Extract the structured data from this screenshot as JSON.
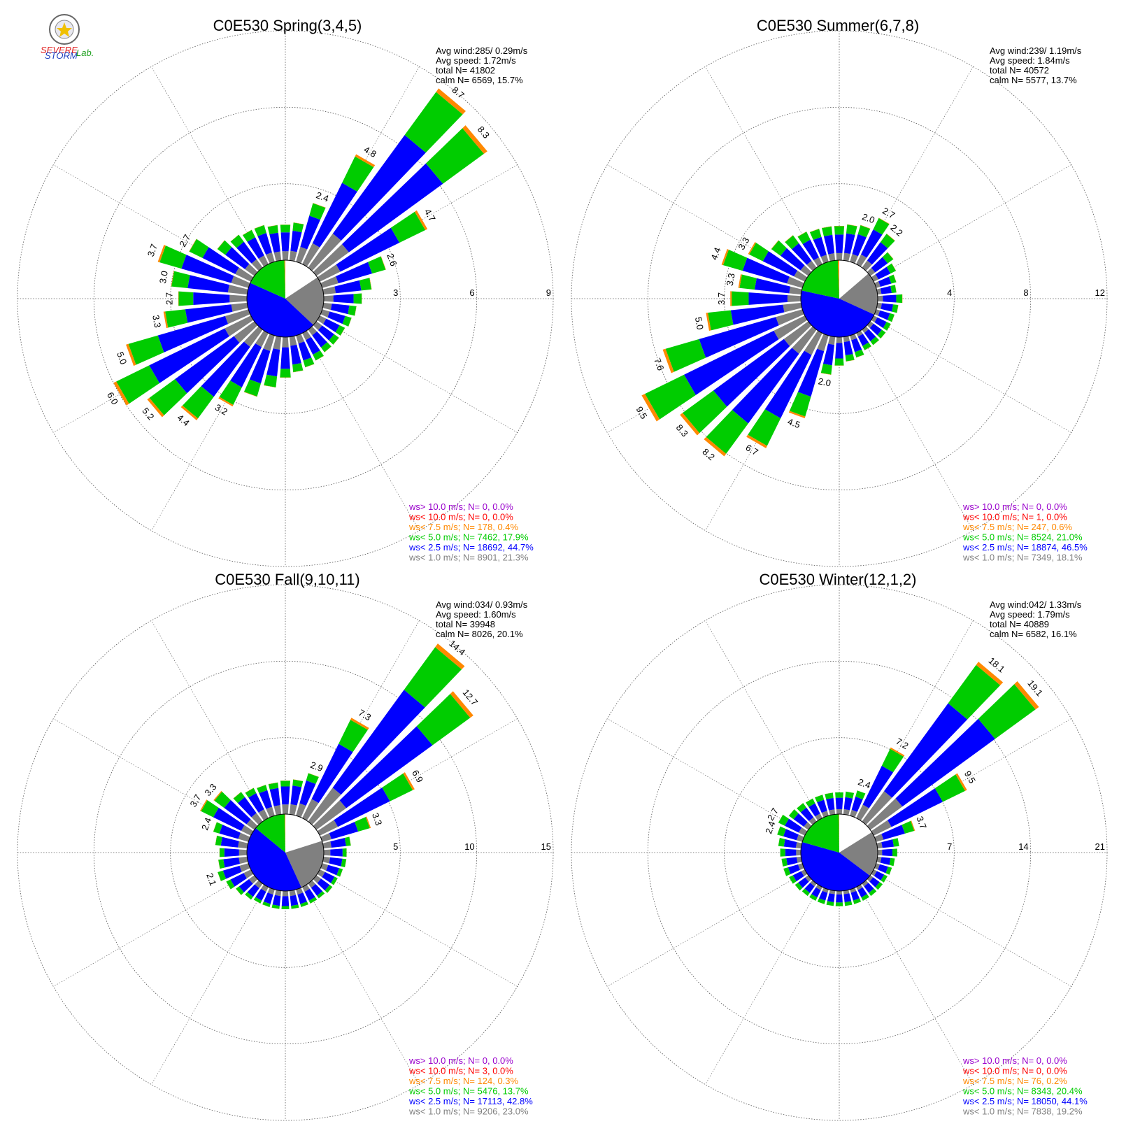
{
  "colors": {
    "calm": "#ffffff",
    "lt1": "#808080",
    "lt2_5": "#0000ff",
    "lt5": "#00cc00",
    "lt7_5": "#ff8800",
    "lt10": "#ff0000",
    "gt10": "#9900cc",
    "grid": "#555555"
  },
  "logo": {
    "text_top": "SEVERE",
    "text_bottom": "STORM",
    "text_lab": "Lab."
  },
  "chart_data": [
    {
      "type": "windrose",
      "title": "C0E530 Spring(3,4,5)",
      "ring_max": 9,
      "rings": [
        "3",
        "6",
        "9"
      ],
      "stats": [
        "Avg wind:285/ 0.29m/s",
        "Avg speed: 1.72m/s",
        "total N=       41802",
        "calm N=   6569,  15.7%"
      ],
      "legend": [
        {
          "text": "ws> 10.0 m/s; N=     0,  0.0%",
          "color": "gt10"
        },
        {
          "text": "ws< 10.0 m/s; N=     0,  0.0%",
          "color": "lt10"
        },
        {
          "text": "ws<  7.5 m/s; N=   178,  0.4%",
          "color": "lt7_5"
        },
        {
          "text": "ws<  5.0 m/s; N=  7462, 17.9%",
          "color": "lt5"
        },
        {
          "text": "ws<  2.5 m/s; N= 18692, 44.7%",
          "color": "lt2_5"
        },
        {
          "text": "ws<  1.0 m/s; N=  8901, 21.3%",
          "color": "lt1"
        }
      ],
      "pie": [
        15.7,
        21.3,
        44.7,
        17.9,
        0.4,
        0.0,
        0.0
      ],
      "bars": [
        {
          "dir": 0,
          "total": 1.4
        },
        {
          "dir": 10,
          "total": 1.5
        },
        {
          "dir": 20,
          "total": 2.4,
          "label": "2.4"
        },
        {
          "dir": 30,
          "total": 4.8,
          "label": "4.8"
        },
        {
          "dir": 40,
          "total": 8.7,
          "label": "8.7"
        },
        {
          "dir": 50,
          "total": 8.3,
          "label": "8.3"
        },
        {
          "dir": 60,
          "total": 4.7,
          "label": "4.7"
        },
        {
          "dir": 70,
          "total": 2.6,
          "label": "2.6"
        },
        {
          "dir": 80,
          "total": 1.9
        },
        {
          "dir": 90,
          "total": 1.5
        },
        {
          "dir": 100,
          "total": 1.3
        },
        {
          "dir": 110,
          "total": 1.2
        },
        {
          "dir": 120,
          "total": 1.1
        },
        {
          "dir": 130,
          "total": 1.1
        },
        {
          "dir": 140,
          "total": 1.1
        },
        {
          "dir": 150,
          "total": 1.2
        },
        {
          "dir": 160,
          "total": 1.3
        },
        {
          "dir": 170,
          "total": 1.4
        },
        {
          "dir": 180,
          "total": 1.6
        },
        {
          "dir": 190,
          "total": 2.0
        },
        {
          "dir": 200,
          "total": 2.5
        },
        {
          "dir": 210,
          "total": 3.2,
          "label": "3.2"
        },
        {
          "dir": 220,
          "total": 4.4,
          "label": "4.4"
        },
        {
          "dir": 230,
          "total": 5.2,
          "label": "5.2"
        },
        {
          "dir": 240,
          "total": 6.0,
          "label": "6.0"
        },
        {
          "dir": 250,
          "total": 5.0,
          "label": "5.0"
        },
        {
          "dir": 260,
          "total": 3.3,
          "label": "3.3"
        },
        {
          "dir": 270,
          "total": 2.7,
          "label": "2.7"
        },
        {
          "dir": 280,
          "total": 3.0,
          "label": "3.0"
        },
        {
          "dir": 290,
          "total": 3.7,
          "label": "3.7"
        },
        {
          "dir": 300,
          "total": 2.7,
          "label": "2.7"
        },
        {
          "dir": 310,
          "total": 1.8
        },
        {
          "dir": 320,
          "total": 1.6
        },
        {
          "dir": 330,
          "total": 1.5
        },
        {
          "dir": 340,
          "total": 1.5
        },
        {
          "dir": 350,
          "total": 1.4
        }
      ]
    },
    {
      "type": "windrose",
      "title": "C0E530 Summer(6,7,8)",
      "ring_max": 12,
      "rings": [
        "4",
        "8",
        "12"
      ],
      "stats": [
        "Avg wind:239/ 1.19m/s",
        "Avg speed: 1.84m/s",
        "total N=       40572",
        "calm N=   5577,  13.7%"
      ],
      "legend": [
        {
          "text": "ws> 10.0 m/s; N=     0,  0.0%",
          "color": "gt10"
        },
        {
          "text": "ws< 10.0 m/s; N=     1,  0.0%",
          "color": "lt10"
        },
        {
          "text": "ws<  7.5 m/s; N=   247,  0.6%",
          "color": "lt7_5"
        },
        {
          "text": "ws<  5.0 m/s; N=  8524, 21.0%",
          "color": "lt5"
        },
        {
          "text": "ws<  2.5 m/s; N= 18874, 46.5%",
          "color": "lt2_5"
        },
        {
          "text": "ws<  1.0 m/s; N=  7349, 18.1%",
          "color": "lt1"
        }
      ],
      "pie": [
        13.7,
        18.1,
        46.5,
        21.0,
        0.6,
        0.0,
        0.0
      ],
      "bars": [
        {
          "dir": 0,
          "total": 1.8
        },
        {
          "dir": 10,
          "total": 1.9
        },
        {
          "dir": 20,
          "total": 2.0,
          "label": "2.0"
        },
        {
          "dir": 30,
          "total": 2.7,
          "label": "2.7"
        },
        {
          "dir": 40,
          "total": 2.2,
          "label": "2.2"
        },
        {
          "dir": 50,
          "total": 1.5
        },
        {
          "dir": 60,
          "total": 1.3
        },
        {
          "dir": 70,
          "total": 1.1
        },
        {
          "dir": 80,
          "total": 1.0
        },
        {
          "dir": 90,
          "total": 1.3
        },
        {
          "dir": 100,
          "total": 1.1
        },
        {
          "dir": 110,
          "total": 1.0
        },
        {
          "dir": 120,
          "total": 1.0
        },
        {
          "dir": 130,
          "total": 1.0
        },
        {
          "dir": 140,
          "total": 1.0
        },
        {
          "dir": 150,
          "total": 1.0
        },
        {
          "dir": 160,
          "total": 1.2
        },
        {
          "dir": 170,
          "total": 1.3
        },
        {
          "dir": 180,
          "total": 1.5
        },
        {
          "dir": 190,
          "total": 2.0,
          "label": "2.0"
        },
        {
          "dir": 200,
          "total": 4.5,
          "label": "4.5"
        },
        {
          "dir": 210,
          "total": 6.7,
          "label": "6.7"
        },
        {
          "dir": 220,
          "total": 8.2,
          "label": "8.2"
        },
        {
          "dir": 230,
          "total": 8.3,
          "label": "8.3"
        },
        {
          "dir": 240,
          "total": 9.5,
          "label": "9.5"
        },
        {
          "dir": 250,
          "total": 7.6,
          "label": "7.6"
        },
        {
          "dir": 260,
          "total": 5.0,
          "label": "5.0"
        },
        {
          "dir": 270,
          "total": 3.7,
          "label": "3.7"
        },
        {
          "dir": 280,
          "total": 3.3,
          "label": "3.3"
        },
        {
          "dir": 290,
          "total": 4.4,
          "label": "4.4"
        },
        {
          "dir": 300,
          "total": 3.3,
          "label": "3.3"
        },
        {
          "dir": 310,
          "total": 2.4
        },
        {
          "dir": 320,
          "total": 2.1
        },
        {
          "dir": 330,
          "total": 1.9
        },
        {
          "dir": 340,
          "total": 1.8
        },
        {
          "dir": 350,
          "total": 1.8
        }
      ]
    },
    {
      "type": "windrose",
      "title": "C0E530 Fall(9,10,11)",
      "ring_max": 15,
      "rings": [
        "5",
        "10",
        "15"
      ],
      "stats": [
        "Avg wind:034/ 0.93m/s",
        "Avg speed: 1.60m/s",
        "total N=       39948",
        "calm N=   8026,  20.1%"
      ],
      "legend": [
        {
          "text": "ws> 10.0 m/s; N=     0,  0.0%",
          "color": "gt10"
        },
        {
          "text": "ws< 10.0 m/s; N=     3,  0.0%",
          "color": "lt10"
        },
        {
          "text": "ws<  7.5 m/s; N=   124,  0.3%",
          "color": "lt7_5"
        },
        {
          "text": "ws<  5.0 m/s; N=  5476, 13.7%",
          "color": "lt5"
        },
        {
          "text": "ws<  2.5 m/s; N= 17113, 42.8%",
          "color": "lt2_5"
        },
        {
          "text": "ws<  1.0 m/s; N=  9206, 23.0%",
          "color": "lt1"
        }
      ],
      "pie": [
        20.1,
        23.0,
        42.8,
        13.7,
        0.3,
        0.0,
        0.0
      ],
      "bars": [
        {
          "dir": 0,
          "total": 2.2
        },
        {
          "dir": 10,
          "total": 2.3
        },
        {
          "dir": 20,
          "total": 2.9,
          "label": "2.9"
        },
        {
          "dir": 30,
          "total": 7.3,
          "label": "7.3"
        },
        {
          "dir": 40,
          "total": 14.4,
          "label": "14.4"
        },
        {
          "dir": 50,
          "total": 12.7,
          "label": "12.7"
        },
        {
          "dir": 60,
          "total": 6.9,
          "label": "6.9"
        },
        {
          "dir": 70,
          "total": 3.3,
          "label": "3.3"
        },
        {
          "dir": 80,
          "total": 1.8
        },
        {
          "dir": 90,
          "total": 1.5
        },
        {
          "dir": 100,
          "total": 1.5
        },
        {
          "dir": 110,
          "total": 1.4
        },
        {
          "dir": 120,
          "total": 1.3
        },
        {
          "dir": 130,
          "total": 1.3
        },
        {
          "dir": 140,
          "total": 1.2
        },
        {
          "dir": 150,
          "total": 1.2
        },
        {
          "dir": 160,
          "total": 1.2
        },
        {
          "dir": 170,
          "total": 1.2
        },
        {
          "dir": 180,
          "total": 1.2
        },
        {
          "dir": 190,
          "total": 1.2
        },
        {
          "dir": 200,
          "total": 1.2
        },
        {
          "dir": 210,
          "total": 1.2
        },
        {
          "dir": 220,
          "total": 1.3
        },
        {
          "dir": 230,
          "total": 1.5
        },
        {
          "dir": 240,
          "total": 1.8
        },
        {
          "dir": 250,
          "total": 2.1,
          "label": "2.1"
        },
        {
          "dir": 260,
          "total": 1.9
        },
        {
          "dir": 270,
          "total": 1.8
        },
        {
          "dir": 280,
          "total": 2.1
        },
        {
          "dir": 290,
          "total": 2.4,
          "label": "2.4"
        },
        {
          "dir": 300,
          "total": 3.7,
          "label": "3.7"
        },
        {
          "dir": 310,
          "total": 3.3,
          "label": "3.3"
        },
        {
          "dir": 320,
          "total": 2.4
        },
        {
          "dir": 330,
          "total": 2.2
        },
        {
          "dir": 340,
          "total": 2.1
        },
        {
          "dir": 350,
          "total": 2.1
        }
      ]
    },
    {
      "type": "windrose",
      "title": "C0E530 Winter(12,1,2)",
      "ring_max": 21,
      "rings": [
        "7",
        "14",
        "21"
      ],
      "stats": [
        "Avg wind:042/ 1.33m/s",
        "Avg speed: 1.79m/s",
        "total N=       40889",
        "calm N=   6582,  16.1%"
      ],
      "legend": [
        {
          "text": "ws> 10.0 m/s; N=     0,  0.0%",
          "color": "gt10"
        },
        {
          "text": "ws< 10.0 m/s; N=     0,  0.0%",
          "color": "lt10"
        },
        {
          "text": "ws<  7.5 m/s; N=    76,  0.2%",
          "color": "lt7_5"
        },
        {
          "text": "ws<  5.0 m/s; N=  8343, 20.4%",
          "color": "lt5"
        },
        {
          "text": "ws<  2.5 m/s; N= 18050, 44.1%",
          "color": "lt2_5"
        },
        {
          "text": "ws<  1.0 m/s; N=  7838, 19.2%",
          "color": "lt1"
        }
      ],
      "pie": [
        16.1,
        19.2,
        44.1,
        20.4,
        0.2,
        0.0,
        0.0
      ],
      "bars": [
        {
          "dir": 0,
          "total": 2.0
        },
        {
          "dir": 10,
          "total": 2.1
        },
        {
          "dir": 20,
          "total": 2.4,
          "label": "2.4"
        },
        {
          "dir": 30,
          "total": 7.2,
          "label": "7.2"
        },
        {
          "dir": 40,
          "total": 18.1,
          "label": "18.1"
        },
        {
          "dir": 50,
          "total": 19.1,
          "label": "19.1"
        },
        {
          "dir": 60,
          "total": 9.5,
          "label": "9.5"
        },
        {
          "dir": 70,
          "total": 3.7,
          "label": "3.7"
        },
        {
          "dir": 80,
          "total": 2.0
        },
        {
          "dir": 90,
          "total": 1.8
        },
        {
          "dir": 100,
          "total": 1.6
        },
        {
          "dir": 110,
          "total": 1.5
        },
        {
          "dir": 120,
          "total": 1.4
        },
        {
          "dir": 130,
          "total": 1.4
        },
        {
          "dir": 140,
          "total": 1.4
        },
        {
          "dir": 150,
          "total": 1.4
        },
        {
          "dir": 160,
          "total": 1.4
        },
        {
          "dir": 170,
          "total": 1.4
        },
        {
          "dir": 180,
          "total": 1.4
        },
        {
          "dir": 190,
          "total": 1.4
        },
        {
          "dir": 200,
          "total": 1.4
        },
        {
          "dir": 210,
          "total": 1.4
        },
        {
          "dir": 220,
          "total": 1.4
        },
        {
          "dir": 230,
          "total": 1.5
        },
        {
          "dir": 240,
          "total": 1.6
        },
        {
          "dir": 250,
          "total": 1.8
        },
        {
          "dir": 260,
          "total": 1.8
        },
        {
          "dir": 270,
          "total": 1.9
        },
        {
          "dir": 280,
          "total": 2.1
        },
        {
          "dir": 290,
          "total": 2.4,
          "label": "2.4"
        },
        {
          "dir": 300,
          "total": 2.7,
          "label": "2.7"
        },
        {
          "dir": 310,
          "total": 2.2
        },
        {
          "dir": 320,
          "total": 2.1
        },
        {
          "dir": 330,
          "total": 2.0
        },
        {
          "dir": 340,
          "total": 2.0
        },
        {
          "dir": 350,
          "total": 2.0
        }
      ]
    }
  ]
}
